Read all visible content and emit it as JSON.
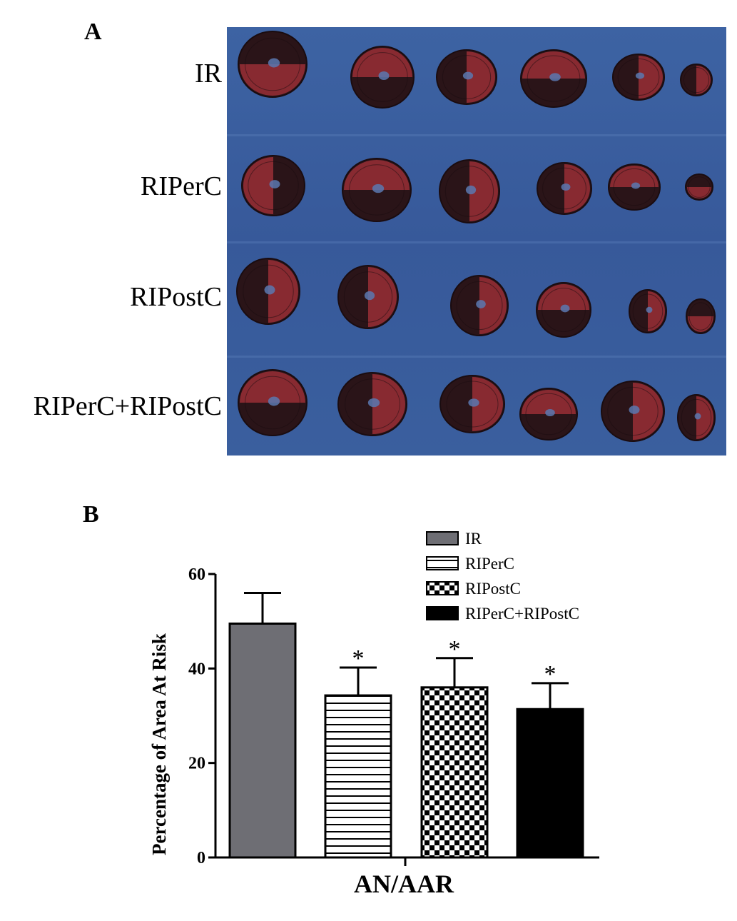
{
  "panel_a": {
    "letter": "A",
    "rows": [
      "IR",
      "RIPerC",
      "RIPostC",
      "RIPerC+RIPostC"
    ],
    "background_color": "#3a5f9e",
    "tissue_colors": {
      "dark": "#2a1418",
      "red": "#a8323a"
    }
  },
  "panel_b": {
    "letter": "B"
  },
  "chart_data": {
    "type": "bar",
    "categories": [
      "IR",
      "RIPerC",
      "RIPostC",
      "RIPerC+RIPostC"
    ],
    "values": [
      49.5,
      34.3,
      36.0,
      31.4
    ],
    "errors": [
      6.5,
      5.9,
      6.2,
      5.5
    ],
    "significance": [
      "",
      "*",
      "*",
      "*"
    ],
    "xlabel": "AN/AAR",
    "ylabel": "Percentage of Area At Risk",
    "ylim": [
      0,
      60
    ],
    "yticks": [
      0,
      20,
      40,
      60
    ],
    "grid": false,
    "legend": {
      "position": "top-right",
      "entries": [
        "IR",
        "RIPerC",
        "RIPostC",
        "RIPerC+RIPostC"
      ]
    },
    "fills": [
      "gray",
      "horizontal-stripes",
      "checkerboard",
      "black"
    ],
    "colors": {
      "IR": "#6e6e74",
      "RIPerC": "#ffffff",
      "RIPostC": "#ffffff",
      "RIPerC+RIPostC": "#000000"
    }
  }
}
